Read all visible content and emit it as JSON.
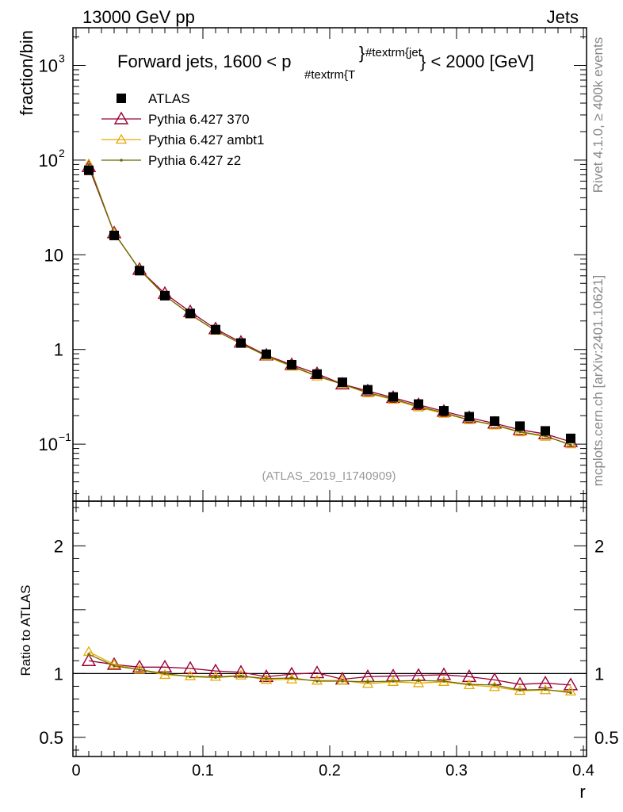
{
  "header": {
    "left": "13000 GeV pp",
    "right": "Jets"
  },
  "side_labels": {
    "rivet": "Rivet 4.1.0, ≥ 400k events",
    "mcplots": "mcplots.cern.ch [arXiv:2401.10621]"
  },
  "chart_data": {
    "type": "line",
    "title_main": "Forward jets, 1600 < p",
    "title_sub": "#textrm{T",
    "title_sup": "#textrm{jet",
    "title_close": "} < 2000 [GeV]",
    "watermark": "(ATLAS_2019_I1740909)",
    "ylabel": "fraction/bin",
    "ratio_ylabel": "Ratio to ATLAS",
    "xlabel": "r",
    "xlim": [
      -0.0025,
      0.4025
    ],
    "ylim_log": [
      0.025,
      2500
    ],
    "ratio_ylim": [
      0.35,
      2.35
    ],
    "x_ticks": [
      "0",
      "0.1",
      "0.2",
      "0.3",
      "0.4"
    ],
    "y_ticks": {
      "exp_labels": [
        {
          "base": "10",
          "exp": "3",
          "value": 1000
        },
        {
          "base": "10",
          "exp": "2",
          "value": 100
        },
        {
          "base": "10",
          "exp": "−1",
          "value": 0.1
        }
      ],
      "plain_labels": [
        {
          "text": "10",
          "value": 10
        },
        {
          "text": "1",
          "value": 1
        }
      ]
    },
    "ratio_ticks": [
      "2",
      "1",
      "0.5"
    ],
    "ratio_tick_values": [
      2,
      1,
      0.5
    ],
    "x": [
      0.01,
      0.03,
      0.05,
      0.07,
      0.09,
      0.11,
      0.13,
      0.15,
      0.17,
      0.19,
      0.21,
      0.23,
      0.25,
      0.27,
      0.29,
      0.31,
      0.33,
      0.35,
      0.37,
      0.39
    ],
    "series": [
      {
        "name": "ATLAS",
        "color": "#000000",
        "marker": "square",
        "values": [
          78,
          16,
          6.8,
          3.7,
          2.4,
          1.62,
          1.17,
          0.89,
          0.69,
          0.55,
          0.45,
          0.375,
          0.315,
          0.265,
          0.225,
          0.195,
          0.175,
          0.155,
          0.138,
          0.115
        ]
      },
      {
        "name": "Pythia 6.427 370",
        "color": "#990033",
        "marker": "triangle-open",
        "values": [
          85,
          17,
          7.0,
          3.9,
          2.5,
          1.65,
          1.19,
          0.87,
          0.69,
          0.555,
          0.43,
          0.365,
          0.31,
          0.261,
          0.222,
          0.19,
          0.166,
          0.142,
          0.128,
          0.106
        ],
        "ratio": [
          1.1,
          1.07,
          1.05,
          1.05,
          1.04,
          1.02,
          1.01,
          0.975,
          0.995,
          1.005,
          0.955,
          0.975,
          0.98,
          0.985,
          0.99,
          0.975,
          0.95,
          0.915,
          0.925,
          0.91
        ]
      },
      {
        "name": "Pythia 6.427 ambt1",
        "color": "#E6A800",
        "marker": "triangle-open-small",
        "values": [
          91,
          17,
          7.0,
          3.7,
          2.35,
          1.58,
          1.15,
          0.85,
          0.66,
          0.52,
          0.43,
          0.345,
          0.295,
          0.245,
          0.21,
          0.18,
          0.158,
          0.134,
          0.12,
          0.1
        ],
        "ratio": [
          1.17,
          1.07,
          1.03,
          0.99,
          0.98,
          0.975,
          0.985,
          0.95,
          0.955,
          0.945,
          0.945,
          0.92,
          0.935,
          0.925,
          0.935,
          0.91,
          0.895,
          0.865,
          0.87,
          0.86
        ]
      },
      {
        "name": "Pythia 6.427 z2",
        "color": "#6B6B00",
        "marker": "dot",
        "values": [
          90,
          17,
          7.0,
          3.7,
          2.35,
          1.58,
          1.15,
          0.86,
          0.67,
          0.525,
          0.43,
          0.35,
          0.3,
          0.25,
          0.215,
          0.18,
          0.16,
          0.135,
          0.122,
          0.098
        ],
        "ratio": [
          1.15,
          1.06,
          1.03,
          1.0,
          0.975,
          0.97,
          0.98,
          0.96,
          0.965,
          0.94,
          0.94,
          0.935,
          0.94,
          0.945,
          0.94,
          0.915,
          0.91,
          0.87,
          0.875,
          0.85
        ]
      }
    ]
  }
}
